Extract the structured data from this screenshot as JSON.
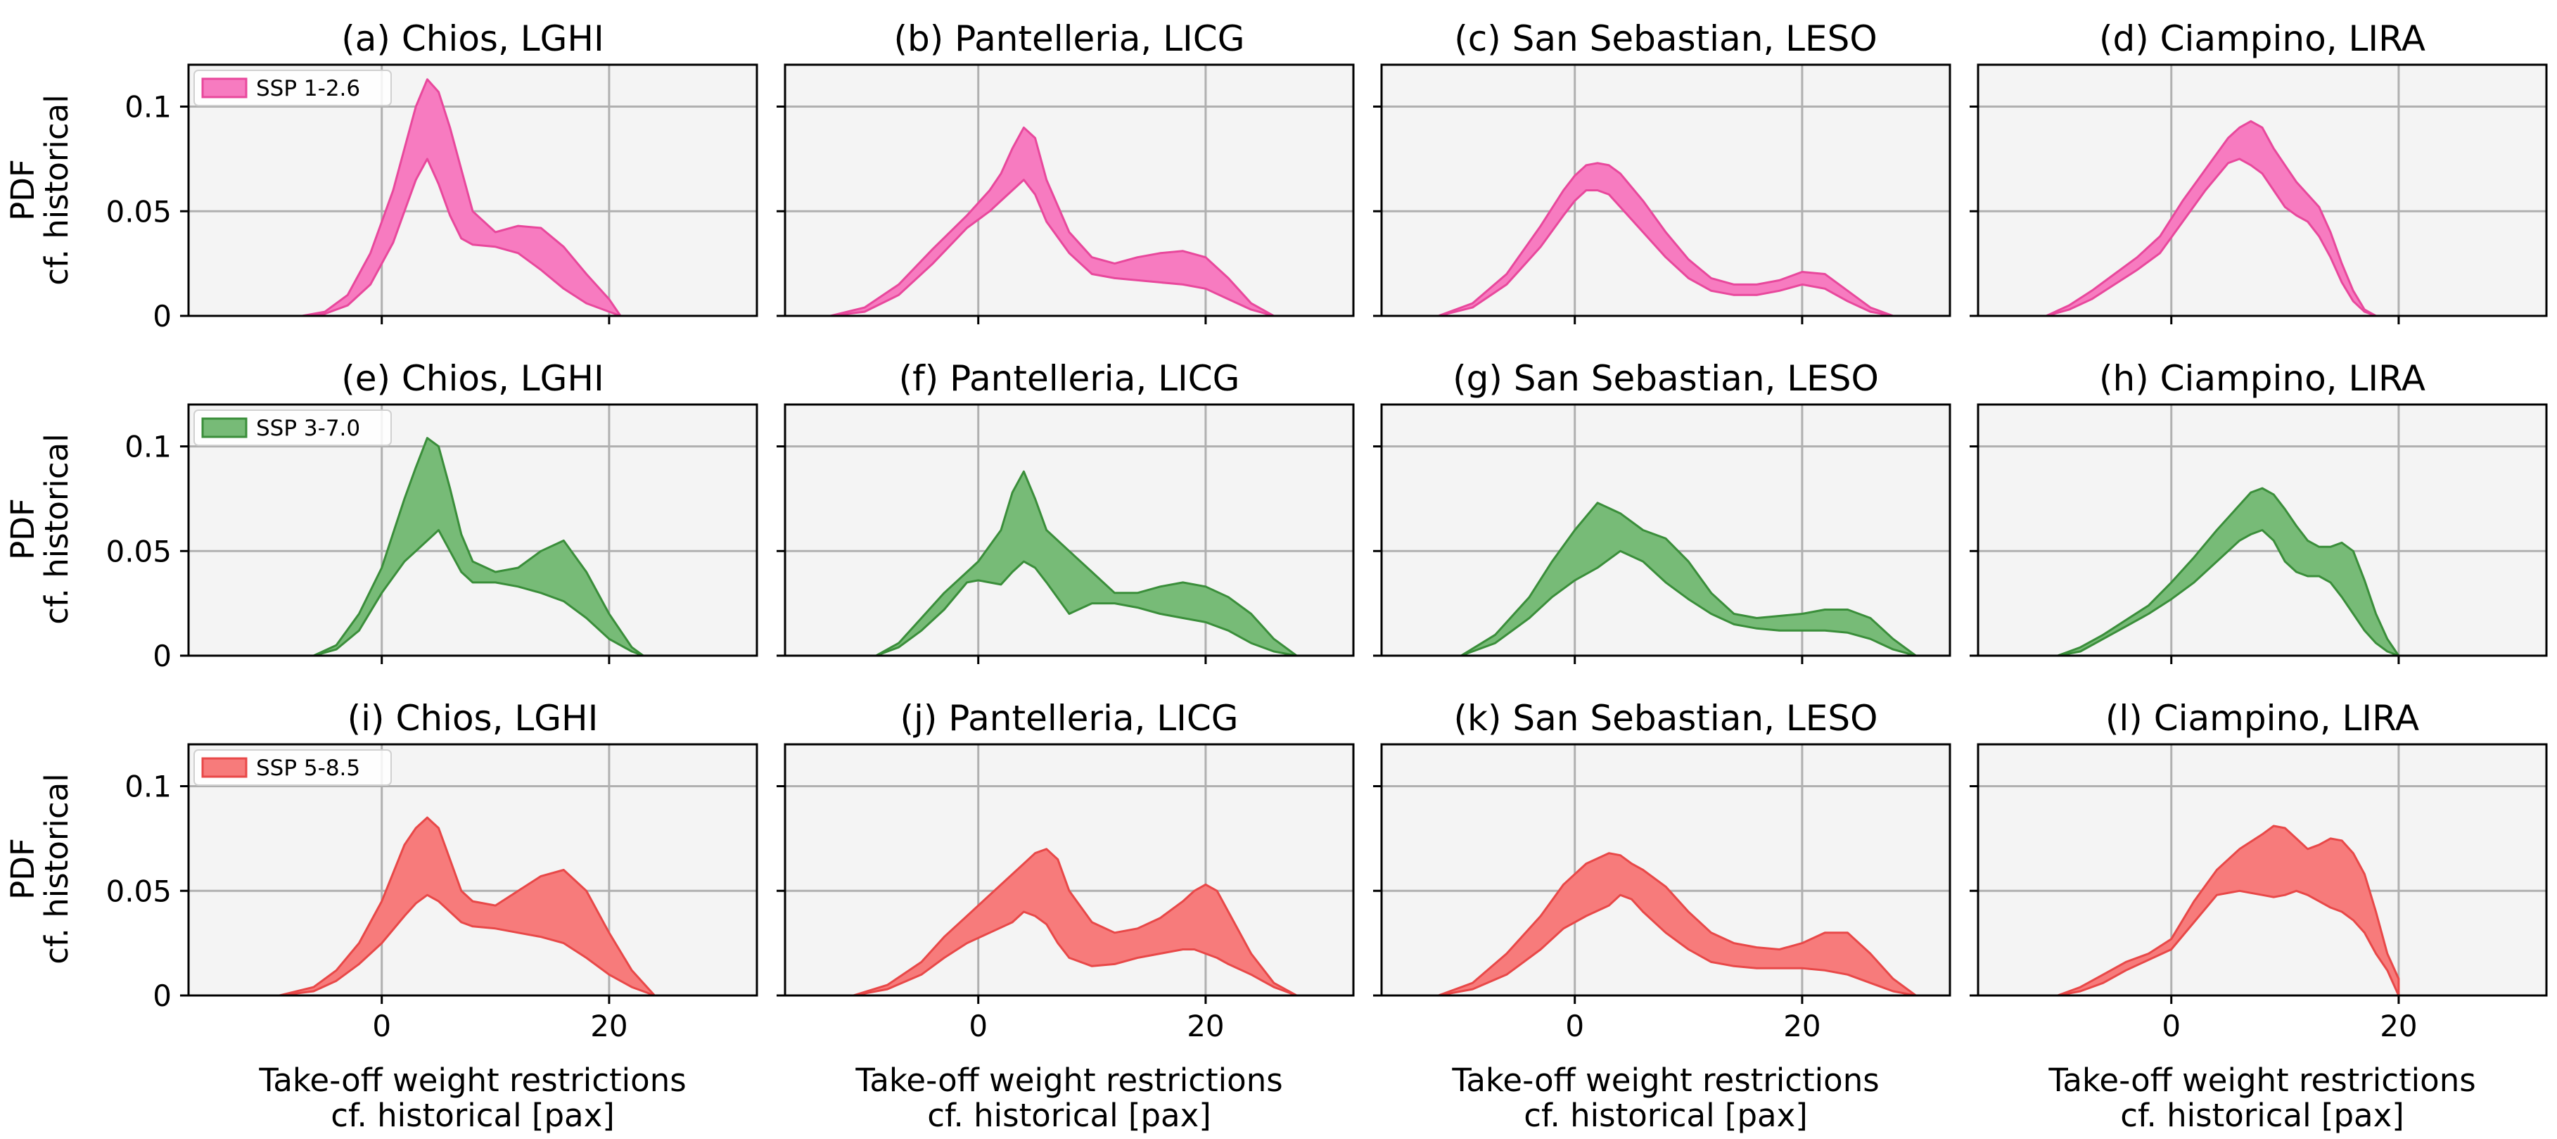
{
  "figure": {
    "x_axis_label": [
      "Take-off weight restrictions",
      "cf. historical [pax]"
    ],
    "y_axis_label": [
      "PDF",
      "cf. historical"
    ],
    "x_ticks": [
      0,
      20
    ],
    "y_ticks": [
      0,
      0.05,
      0.1
    ],
    "xlim": [
      -17,
      33
    ],
    "ylim": [
      0,
      0.12
    ]
  },
  "chart_data": [
    {
      "type": "area",
      "title": "(a) Chios, LGHI",
      "scenario": "SSP 1-2.6",
      "color": "#f77bc0",
      "edge": "#e8489c",
      "x": [
        -7,
        -5,
        -3,
        -1,
        1,
        2,
        3,
        4,
        5,
        6,
        7,
        8,
        10,
        12,
        14,
        16,
        18,
        20,
        21
      ],
      "lower": [
        0,
        0.001,
        0.005,
        0.015,
        0.035,
        0.05,
        0.065,
        0.075,
        0.063,
        0.048,
        0.037,
        0.034,
        0.033,
        0.03,
        0.022,
        0.013,
        0.006,
        0.002,
        0
      ],
      "upper": [
        0,
        0.002,
        0.01,
        0.03,
        0.06,
        0.08,
        0.1,
        0.113,
        0.107,
        0.09,
        0.07,
        0.05,
        0.04,
        0.043,
        0.042,
        0.033,
        0.02,
        0.008,
        0
      ]
    },
    {
      "type": "area",
      "title": "(b) Pantelleria, LICG",
      "scenario": "SSP 1-2.6",
      "color": "#f77bc0",
      "edge": "#e8489c",
      "x": [
        -13,
        -10,
        -7,
        -4,
        -1,
        1,
        2,
        3,
        4,
        5,
        6,
        8,
        10,
        12,
        14,
        16,
        18,
        20,
        22,
        24,
        26
      ],
      "lower": [
        0,
        0.002,
        0.01,
        0.025,
        0.042,
        0.05,
        0.055,
        0.06,
        0.065,
        0.058,
        0.045,
        0.03,
        0.02,
        0.018,
        0.017,
        0.016,
        0.015,
        0.013,
        0.008,
        0.003,
        0
      ],
      "upper": [
        0,
        0.004,
        0.015,
        0.032,
        0.048,
        0.06,
        0.068,
        0.08,
        0.09,
        0.085,
        0.065,
        0.04,
        0.028,
        0.025,
        0.028,
        0.03,
        0.031,
        0.028,
        0.018,
        0.006,
        0
      ]
    },
    {
      "type": "area",
      "title": "(c) San Sebastian, LESO",
      "scenario": "SSP 1-2.6",
      "color": "#f77bc0",
      "edge": "#e8489c",
      "x": [
        -12,
        -9,
        -6,
        -3,
        -1,
        0,
        1,
        2,
        3,
        4,
        6,
        8,
        10,
        12,
        14,
        16,
        18,
        20,
        22,
        24,
        26,
        28
      ],
      "lower": [
        0,
        0.004,
        0.015,
        0.033,
        0.048,
        0.055,
        0.06,
        0.06,
        0.058,
        0.052,
        0.04,
        0.028,
        0.018,
        0.012,
        0.01,
        0.01,
        0.012,
        0.015,
        0.013,
        0.007,
        0.002,
        0
      ],
      "upper": [
        0,
        0.006,
        0.02,
        0.043,
        0.06,
        0.067,
        0.072,
        0.073,
        0.072,
        0.068,
        0.055,
        0.04,
        0.027,
        0.018,
        0.015,
        0.015,
        0.017,
        0.021,
        0.02,
        0.012,
        0.004,
        0
      ]
    },
    {
      "type": "area",
      "title": "(d) Ciampino, LIRA",
      "scenario": "SSP 1-2.6",
      "color": "#f77bc0",
      "edge": "#e8489c",
      "x": [
        -11,
        -9,
        -7,
        -5,
        -3,
        -1,
        1,
        3,
        5,
        6,
        7,
        8,
        9,
        10,
        11,
        12,
        13,
        14,
        15,
        16,
        17,
        18
      ],
      "lower": [
        0,
        0.003,
        0.008,
        0.015,
        0.022,
        0.03,
        0.045,
        0.06,
        0.073,
        0.075,
        0.072,
        0.068,
        0.06,
        0.052,
        0.048,
        0.045,
        0.038,
        0.028,
        0.016,
        0.007,
        0.002,
        0
      ],
      "upper": [
        0,
        0.005,
        0.012,
        0.02,
        0.028,
        0.038,
        0.055,
        0.07,
        0.085,
        0.09,
        0.093,
        0.09,
        0.08,
        0.072,
        0.064,
        0.058,
        0.052,
        0.04,
        0.025,
        0.012,
        0.003,
        0
      ]
    },
    {
      "type": "area",
      "title": "(e) Chios, LGHI",
      "scenario": "SSP 3-7.0",
      "color": "#77bb77",
      "edge": "#3a8e3a",
      "x": [
        -6,
        -4,
        -2,
        0,
        2,
        3,
        4,
        5,
        6,
        7,
        8,
        10,
        12,
        14,
        16,
        18,
        20,
        22,
        23
      ],
      "lower": [
        0,
        0.003,
        0.012,
        0.03,
        0.045,
        0.05,
        0.055,
        0.06,
        0.05,
        0.04,
        0.035,
        0.035,
        0.033,
        0.03,
        0.026,
        0.018,
        0.008,
        0.002,
        0
      ],
      "upper": [
        0,
        0.005,
        0.02,
        0.042,
        0.075,
        0.09,
        0.104,
        0.1,
        0.08,
        0.058,
        0.045,
        0.04,
        0.042,
        0.05,
        0.055,
        0.04,
        0.02,
        0.004,
        0
      ]
    },
    {
      "type": "area",
      "title": "(f) Pantelleria, LICG",
      "scenario": "SSP 3-7.0",
      "color": "#77bb77",
      "edge": "#3a8e3a",
      "x": [
        -9,
        -7,
        -5,
        -3,
        -1,
        0,
        2,
        3,
        4,
        5,
        6,
        8,
        10,
        12,
        14,
        16,
        18,
        20,
        22,
        24,
        26,
        28
      ],
      "lower": [
        0,
        0.004,
        0.012,
        0.022,
        0.035,
        0.036,
        0.034,
        0.04,
        0.045,
        0.042,
        0.035,
        0.02,
        0.025,
        0.025,
        0.023,
        0.02,
        0.018,
        0.016,
        0.012,
        0.006,
        0.002,
        0
      ],
      "upper": [
        0,
        0.006,
        0.018,
        0.03,
        0.04,
        0.045,
        0.06,
        0.078,
        0.088,
        0.075,
        0.06,
        0.05,
        0.04,
        0.03,
        0.03,
        0.033,
        0.035,
        0.033,
        0.028,
        0.02,
        0.008,
        0
      ]
    },
    {
      "type": "area",
      "title": "(g) San Sebastian, LESO",
      "scenario": "SSP 3-7.0",
      "color": "#77bb77",
      "edge": "#3a8e3a",
      "x": [
        -10,
        -7,
        -4,
        -2,
        0,
        2,
        4,
        6,
        8,
        10,
        12,
        14,
        16,
        18,
        20,
        22,
        24,
        26,
        28,
        30
      ],
      "lower": [
        0,
        0.006,
        0.018,
        0.028,
        0.036,
        0.042,
        0.05,
        0.045,
        0.035,
        0.027,
        0.02,
        0.015,
        0.013,
        0.012,
        0.012,
        0.012,
        0.011,
        0.008,
        0.003,
        0
      ],
      "upper": [
        0,
        0.01,
        0.028,
        0.045,
        0.06,
        0.073,
        0.068,
        0.06,
        0.056,
        0.045,
        0.03,
        0.02,
        0.018,
        0.019,
        0.02,
        0.022,
        0.022,
        0.018,
        0.008,
        0
      ]
    },
    {
      "type": "area",
      "title": "(h) Ciampino, LIRA",
      "scenario": "SSP 3-7.0",
      "color": "#77bb77",
      "edge": "#3a8e3a",
      "x": [
        -10,
        -8,
        -6,
        -4,
        -2,
        0,
        2,
        4,
        6,
        7,
        8,
        9,
        10,
        11,
        12,
        13,
        14,
        15,
        16,
        17,
        18,
        19,
        20
      ],
      "lower": [
        0,
        0.002,
        0.008,
        0.014,
        0.02,
        0.027,
        0.035,
        0.045,
        0.055,
        0.058,
        0.06,
        0.055,
        0.045,
        0.04,
        0.038,
        0.038,
        0.035,
        0.028,
        0.02,
        0.012,
        0.006,
        0.002,
        0
      ],
      "upper": [
        0,
        0.004,
        0.01,
        0.017,
        0.024,
        0.035,
        0.047,
        0.06,
        0.072,
        0.078,
        0.08,
        0.077,
        0.07,
        0.062,
        0.055,
        0.052,
        0.052,
        0.054,
        0.05,
        0.036,
        0.02,
        0.008,
        0
      ]
    },
    {
      "type": "area",
      "title": "(i) Chios, LGHI",
      "scenario": "SSP 5-8.5",
      "color": "#f77b7b",
      "edge": "#e84848",
      "x": [
        -9,
        -6,
        -4,
        -2,
        0,
        2,
        3,
        4,
        5,
        6,
        7,
        8,
        10,
        12,
        14,
        16,
        18,
        20,
        22,
        24
      ],
      "lower": [
        0,
        0.002,
        0.007,
        0.015,
        0.025,
        0.038,
        0.044,
        0.048,
        0.045,
        0.04,
        0.035,
        0.033,
        0.032,
        0.03,
        0.028,
        0.025,
        0.018,
        0.01,
        0.004,
        0
      ],
      "upper": [
        0,
        0.004,
        0.012,
        0.025,
        0.045,
        0.072,
        0.08,
        0.085,
        0.08,
        0.065,
        0.05,
        0.045,
        0.043,
        0.05,
        0.057,
        0.06,
        0.05,
        0.03,
        0.012,
        0
      ]
    },
    {
      "type": "area",
      "title": "(j) Pantelleria, LICG",
      "scenario": "SSP 5-8.5",
      "color": "#f77b7b",
      "edge": "#e84848",
      "x": [
        -11,
        -8,
        -5,
        -3,
        -1,
        1,
        3,
        4,
        5,
        6,
        7,
        8,
        10,
        12,
        14,
        16,
        18,
        19,
        20,
        21,
        22,
        24,
        26,
        28
      ],
      "lower": [
        0,
        0.003,
        0.01,
        0.018,
        0.025,
        0.03,
        0.035,
        0.04,
        0.038,
        0.034,
        0.025,
        0.018,
        0.014,
        0.015,
        0.018,
        0.02,
        0.022,
        0.022,
        0.02,
        0.018,
        0.015,
        0.01,
        0.004,
        0
      ],
      "upper": [
        0,
        0.005,
        0.016,
        0.028,
        0.038,
        0.048,
        0.058,
        0.063,
        0.068,
        0.07,
        0.065,
        0.05,
        0.035,
        0.03,
        0.032,
        0.037,
        0.045,
        0.05,
        0.053,
        0.05,
        0.04,
        0.02,
        0.006,
        0
      ]
    },
    {
      "type": "area",
      "title": "(k) San Sebastian, LESO",
      "scenario": "SSP 5-8.5",
      "color": "#f77b7b",
      "edge": "#e84848",
      "x": [
        -12,
        -9,
        -6,
        -3,
        -1,
        1,
        3,
        4,
        5,
        6,
        8,
        10,
        12,
        14,
        16,
        18,
        20,
        22,
        24,
        26,
        28,
        30
      ],
      "lower": [
        0,
        0.003,
        0.01,
        0.022,
        0.032,
        0.038,
        0.043,
        0.048,
        0.046,
        0.04,
        0.03,
        0.022,
        0.016,
        0.014,
        0.013,
        0.013,
        0.013,
        0.012,
        0.01,
        0.006,
        0.002,
        0
      ],
      "upper": [
        0,
        0.006,
        0.02,
        0.038,
        0.053,
        0.063,
        0.068,
        0.067,
        0.063,
        0.06,
        0.052,
        0.04,
        0.03,
        0.025,
        0.023,
        0.022,
        0.025,
        0.03,
        0.03,
        0.02,
        0.008,
        0
      ]
    },
    {
      "type": "area",
      "title": "(l) Ciampino, LIRA",
      "scenario": "SSP 5-8.5",
      "color": "#f77b7b",
      "edge": "#e84848",
      "x": [
        -10,
        -8,
        -6,
        -4,
        -2,
        0,
        2,
        4,
        6,
        8,
        9,
        10,
        11,
        12,
        13,
        14,
        15,
        16,
        17,
        18,
        19,
        20
      ],
      "lower": [
        0,
        0.002,
        0.006,
        0.012,
        0.017,
        0.022,
        0.035,
        0.048,
        0.05,
        0.048,
        0.047,
        0.048,
        0.05,
        0.048,
        0.045,
        0.042,
        0.04,
        0.036,
        0.03,
        0.02,
        0.012,
        0
      ],
      "upper": [
        0,
        0.004,
        0.01,
        0.016,
        0.02,
        0.027,
        0.045,
        0.06,
        0.07,
        0.077,
        0.081,
        0.08,
        0.075,
        0.07,
        0.072,
        0.075,
        0.074,
        0.068,
        0.058,
        0.04,
        0.02,
        0.008
      ]
    }
  ]
}
